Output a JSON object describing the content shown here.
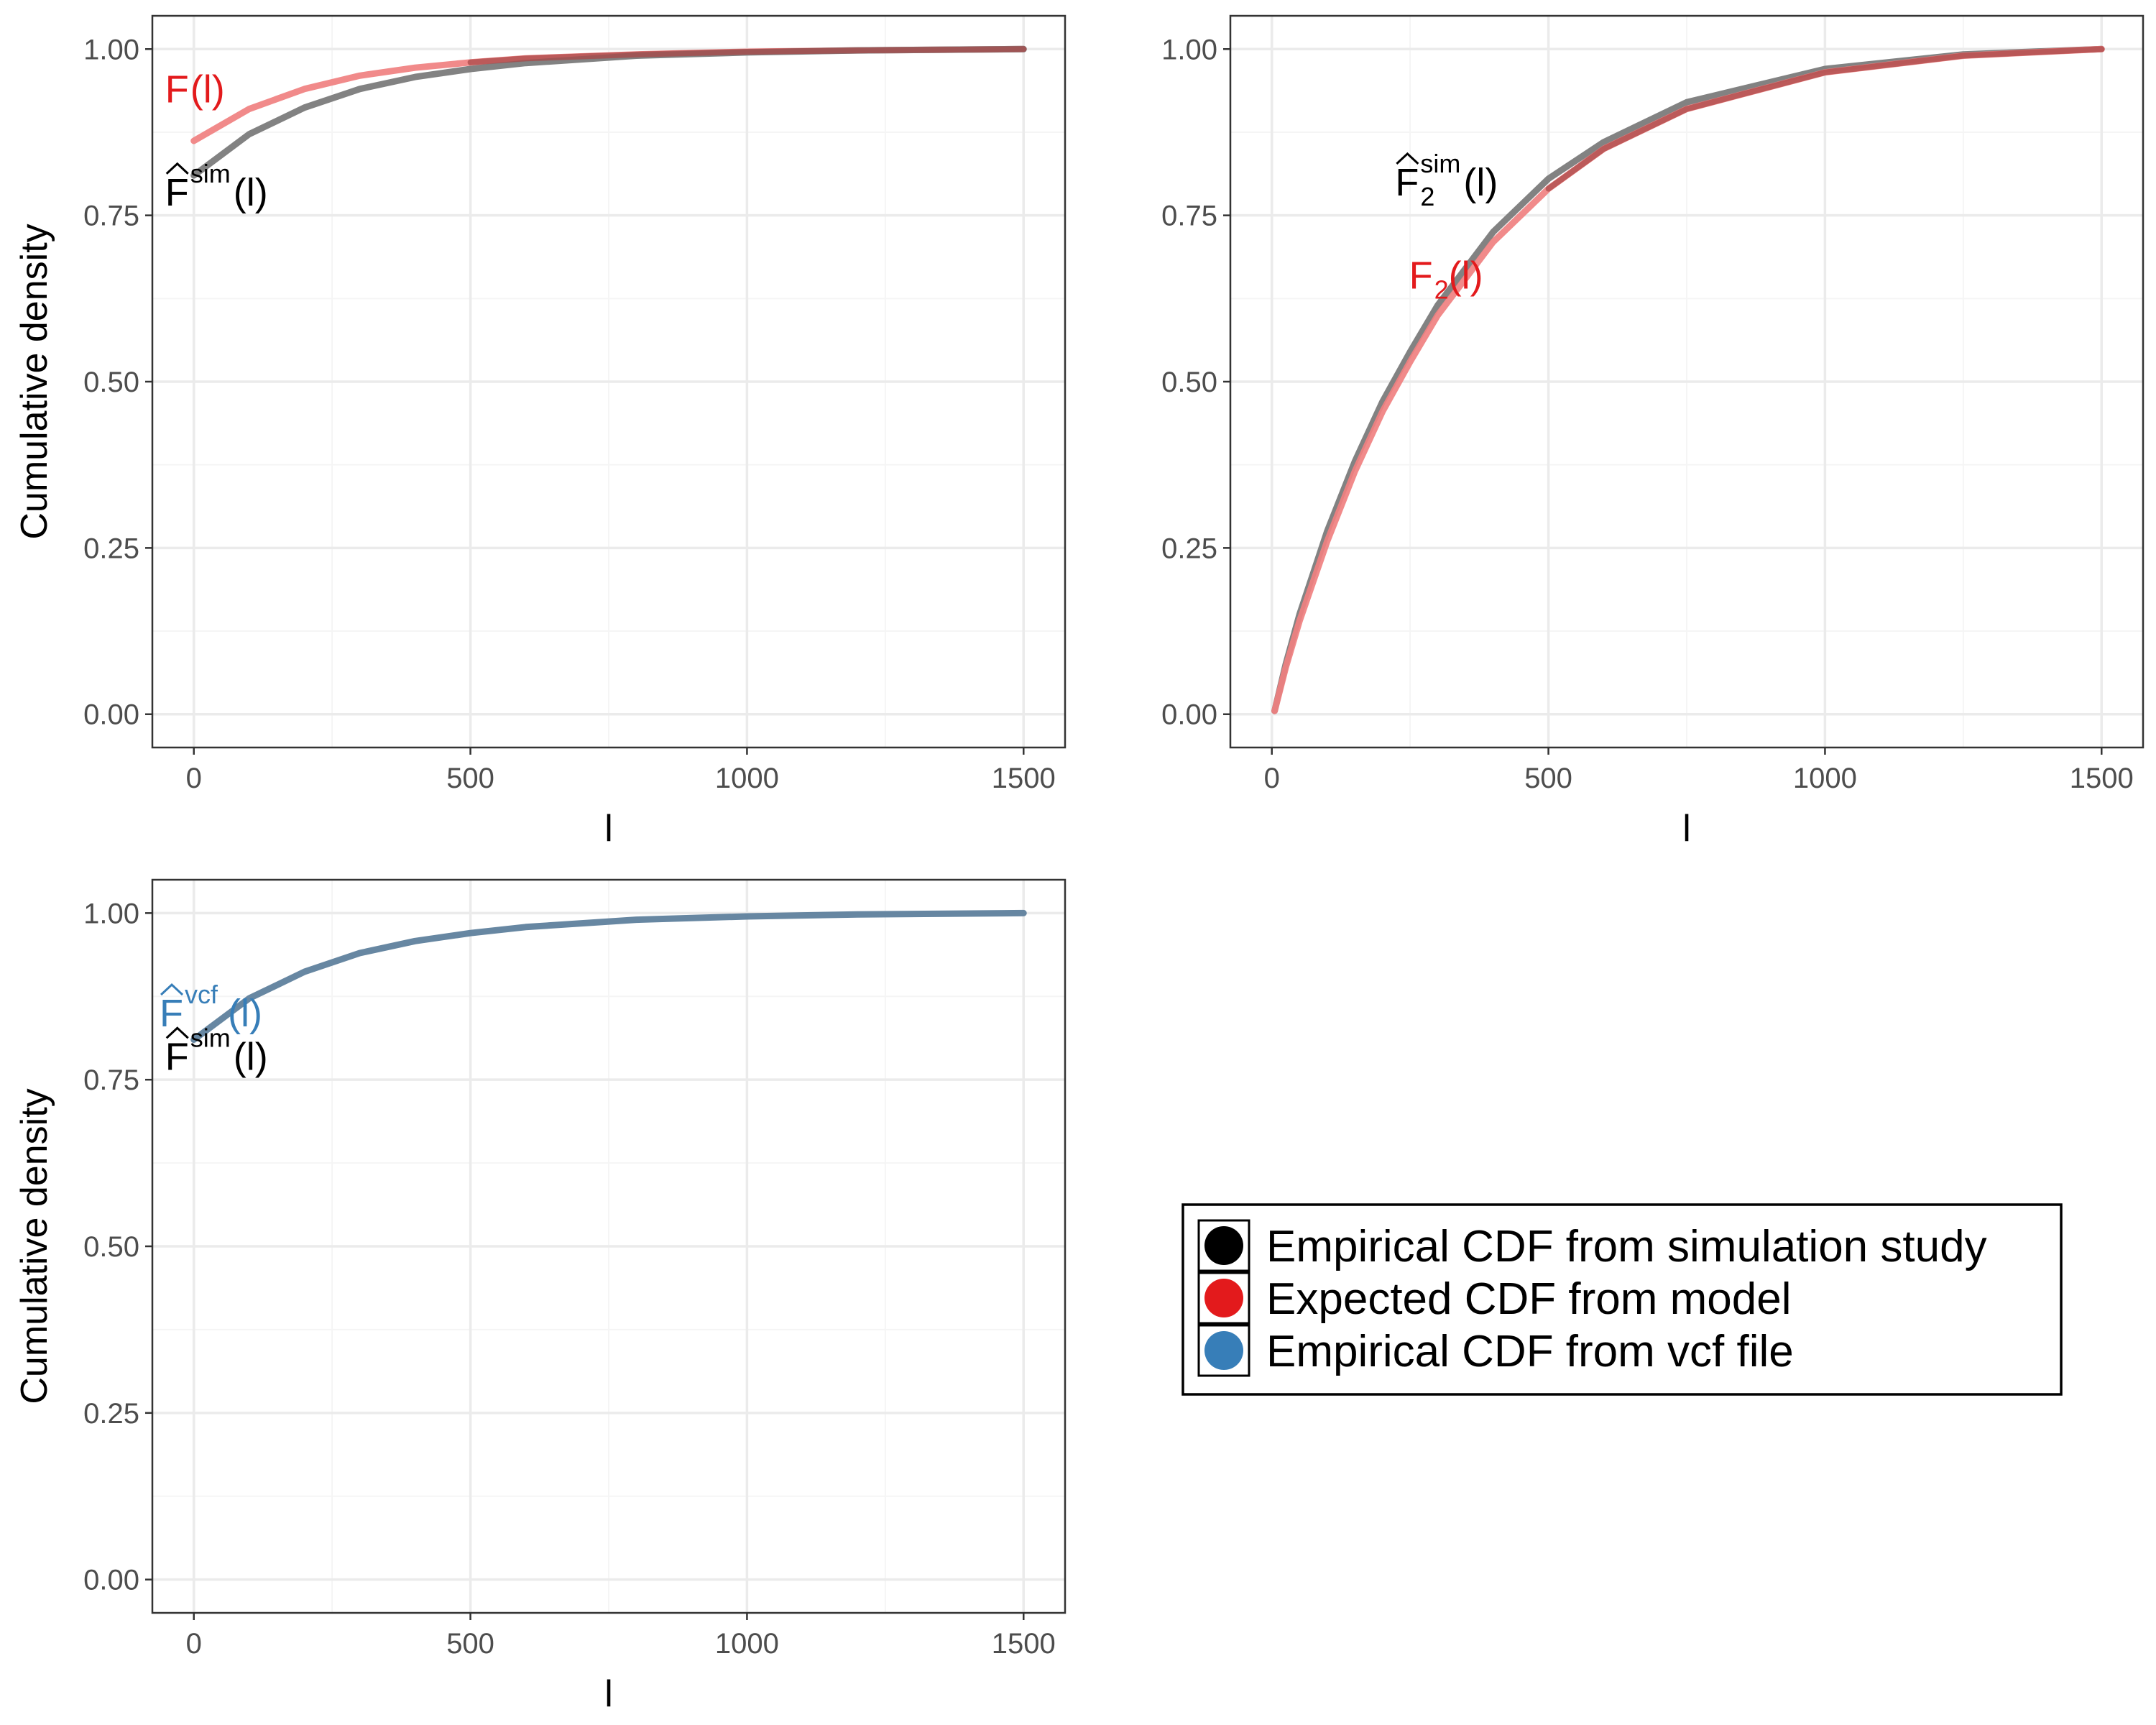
{
  "colors": {
    "sim": "#777777",
    "model": "#f08080",
    "overlap_sim_model": "#a94a4a",
    "vcf": "#5a7d9a",
    "legend_sim": "#000000",
    "legend_model": "#e31a1c",
    "legend_vcf": "#377eb8",
    "anno_red": "#e31a1c",
    "anno_blue": "#377eb8",
    "grid_major": "#ebebeb",
    "grid_minor": "#f5f5f5",
    "panel_border": "#333333"
  },
  "legend": {
    "items": [
      {
        "label": "Empirical CDF from simulation study",
        "color_key": "legend_sim"
      },
      {
        "label": "Expected CDF from model",
        "color_key": "legend_model"
      },
      {
        "label": "Empirical CDF from vcf file",
        "color_key": "legend_vcf"
      }
    ]
  },
  "chart_data": [
    {
      "type": "line",
      "xlabel": "l",
      "ylabel": "Cumulative density",
      "xlim": [
        -75,
        1575
      ],
      "ylim": [
        -0.05,
        1.05
      ],
      "xticks": [
        0,
        500,
        1000,
        1500
      ],
      "xtick_labels": [
        "0",
        "500",
        "1000",
        "1500"
      ],
      "yticks": [
        0.0,
        0.25,
        0.5,
        0.75,
        1.0
      ],
      "ytick_labels": [
        "0.00",
        "0.25",
        "0.50",
        "0.75",
        "1.00"
      ],
      "grid": true,
      "series": [
        {
          "key": "model",
          "x": [
            0,
            100,
            200,
            300,
            400,
            500,
            600,
            800,
            1000,
            1200,
            1500
          ],
          "y": [
            0.862,
            0.91,
            0.94,
            0.96,
            0.972,
            0.98,
            0.986,
            0.992,
            0.996,
            0.998,
            1.0
          ]
        },
        {
          "key": "sim",
          "x": [
            0,
            100,
            200,
            300,
            400,
            500,
            600,
            800,
            1000,
            1200,
            1500
          ],
          "y": [
            0.81,
            0.872,
            0.912,
            0.94,
            0.958,
            0.97,
            0.979,
            0.99,
            0.995,
            0.998,
            1.0
          ]
        }
      ],
      "annotations": [
        {
          "base": "F",
          "sup": "",
          "sub": "",
          "hat": false,
          "tail": "(l)",
          "x": 0,
          "y": 0.92,
          "color_key": "anno_red"
        },
        {
          "base": "F",
          "sup": "sim",
          "sub": "",
          "hat": true,
          "tail": "(l)",
          "x": 0,
          "y": 0.765,
          "color_key": "legend_sim"
        }
      ]
    },
    {
      "type": "line",
      "xlabel": "l",
      "ylabel": "",
      "xlim": [
        -75,
        1575
      ],
      "ylim": [
        -0.05,
        1.05
      ],
      "xticks": [
        0,
        500,
        1000,
        1500
      ],
      "xtick_labels": [
        "0",
        "500",
        "1000",
        "1500"
      ],
      "yticks": [
        0.0,
        0.25,
        0.5,
        0.75,
        1.0
      ],
      "ytick_labels": [
        "0.00",
        "0.25",
        "0.50",
        "0.75",
        "1.00"
      ],
      "grid": true,
      "series": [
        {
          "key": "model",
          "x": [
            5,
            25,
            50,
            100,
            150,
            200,
            250,
            300,
            400,
            500,
            600,
            750,
            1000,
            1250,
            1500
          ],
          "y": [
            0.005,
            0.07,
            0.14,
            0.26,
            0.365,
            0.455,
            0.53,
            0.6,
            0.71,
            0.79,
            0.85,
            0.91,
            0.965,
            0.99,
            1.0
          ]
        },
        {
          "key": "sim",
          "x": [
            5,
            25,
            50,
            100,
            150,
            200,
            250,
            300,
            400,
            500,
            600,
            750,
            1000,
            1250,
            1500
          ],
          "y": [
            0.005,
            0.075,
            0.15,
            0.275,
            0.38,
            0.47,
            0.545,
            0.615,
            0.725,
            0.805,
            0.86,
            0.92,
            0.97,
            0.992,
            1.0
          ]
        }
      ],
      "annotations": [
        {
          "base": "F",
          "sup": "sim",
          "sub": "2",
          "hat": true,
          "tail": "(l)",
          "x": 275,
          "y": 0.78,
          "color_key": "legend_sim"
        },
        {
          "base": "F",
          "sup": "",
          "sub": "2",
          "hat": false,
          "tail": "(l)",
          "x": 300,
          "y": 0.64,
          "color_key": "anno_red"
        }
      ]
    },
    {
      "type": "line",
      "xlabel": "l",
      "ylabel": "Cumulative density",
      "xlim": [
        -75,
        1575
      ],
      "ylim": [
        -0.05,
        1.05
      ],
      "xticks": [
        0,
        500,
        1000,
        1500
      ],
      "xtick_labels": [
        "0",
        "500",
        "1000",
        "1500"
      ],
      "yticks": [
        0.0,
        0.25,
        0.5,
        0.75,
        1.0
      ],
      "ytick_labels": [
        "0.00",
        "0.25",
        "0.50",
        "0.75",
        "1.00"
      ],
      "grid": true,
      "series": [
        {
          "key": "vcf",
          "x": [
            0,
            100,
            200,
            300,
            400,
            500,
            600,
            800,
            1000,
            1200,
            1500
          ],
          "y": [
            0.81,
            0.872,
            0.912,
            0.94,
            0.958,
            0.97,
            0.979,
            0.99,
            0.995,
            0.998,
            1.0
          ]
        }
      ],
      "annotations": [
        {
          "base": "F",
          "sup": "vcf",
          "sub": "",
          "hat": true,
          "tail": "(l)",
          "x": -10,
          "y": 0.83,
          "color_key": "anno_blue"
        },
        {
          "base": "F",
          "sup": "sim",
          "sub": "",
          "hat": true,
          "tail": "(l)",
          "x": 0,
          "y": 0.765,
          "color_key": "legend_sim"
        }
      ]
    }
  ]
}
